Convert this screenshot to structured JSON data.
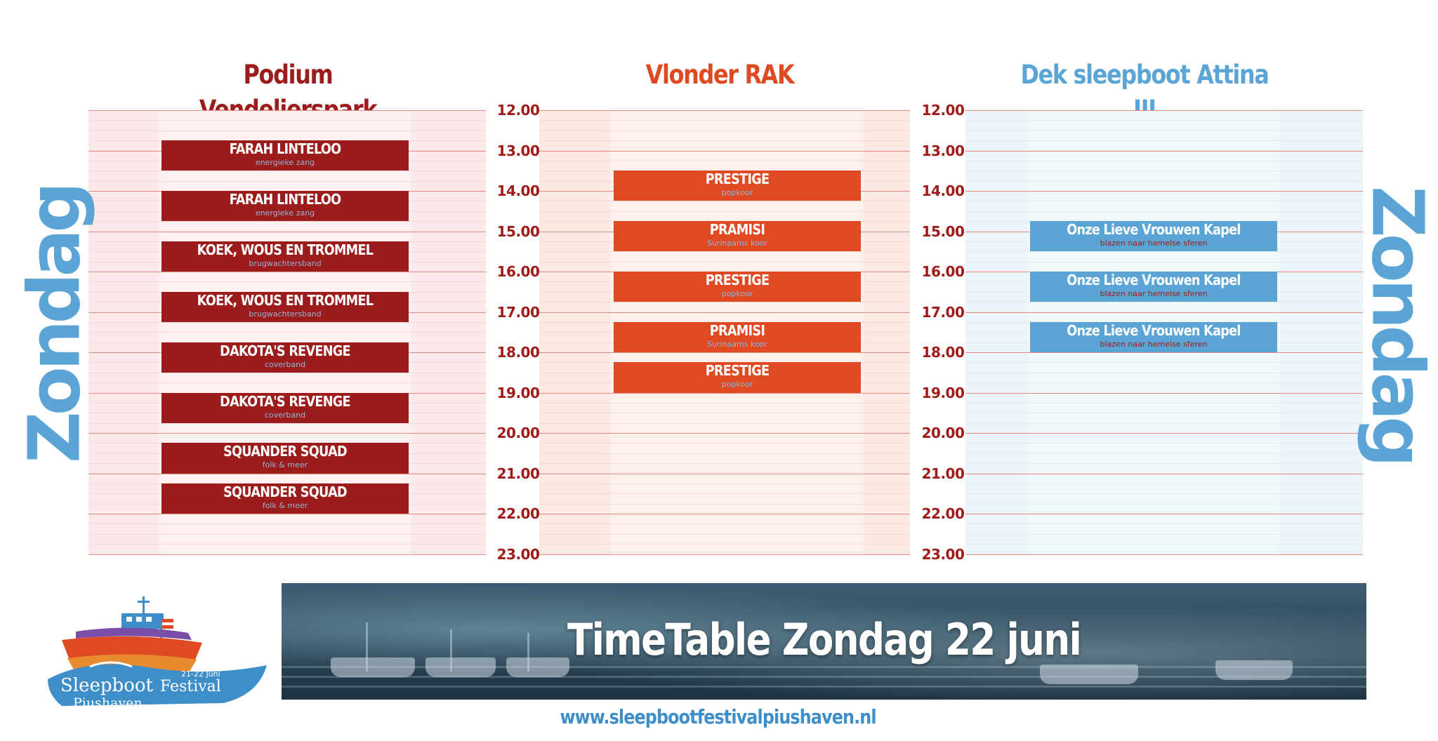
{
  "stages": [
    {
      "id": "podium",
      "title": "Podium Vendelierspark",
      "color": "#9c1b1b"
    },
    {
      "id": "vlonder",
      "title": "Vlonder RAK",
      "color": "#e04a23"
    },
    {
      "id": "dek",
      "title": "Dek sleepboot Attina III",
      "color": "#5aa5d6"
    }
  ],
  "day_label": "Zondag",
  "times": [
    "12.00",
    "13.00",
    "14.00",
    "15.00",
    "16.00",
    "17.00",
    "18.00",
    "19.00",
    "20.00",
    "21.00",
    "22.00",
    "23.00"
  ],
  "schedule": {
    "podium": [
      {
        "name": "FARAH LINTELOO",
        "desc": "energieke zang",
        "start": 12.75,
        "end": 13.5
      },
      {
        "name": "FARAH LINTELOO",
        "desc": "energieke zang",
        "start": 14.0,
        "end": 14.75
      },
      {
        "name": "KOEK, WOUS EN TROMMEL",
        "desc": "brugwachtersband",
        "start": 15.25,
        "end": 16.0
      },
      {
        "name": "KOEK, WOUS EN TROMMEL",
        "desc": "brugwachtersband",
        "start": 16.5,
        "end": 17.25
      },
      {
        "name": "DAKOTA'S REVENGE",
        "desc": "coverband",
        "start": 17.75,
        "end": 18.5
      },
      {
        "name": "DAKOTA'S REVENGE",
        "desc": "coverband",
        "start": 19.0,
        "end": 19.75
      },
      {
        "name": "SQUANDER SQUAD",
        "desc": "folk & meer",
        "start": 20.25,
        "end": 21.0
      },
      {
        "name": "SQUANDER SQUAD",
        "desc": "folk & meer",
        "start": 21.25,
        "end": 22.0
      }
    ],
    "vlonder": [
      {
        "name": "PRESTIGE",
        "desc": "popkoor",
        "start": 13.5,
        "end": 14.25
      },
      {
        "name": "PRAMISI",
        "desc": "Surinaams koor",
        "start": 14.75,
        "end": 15.5
      },
      {
        "name": "PRESTIGE",
        "desc": "popkoor",
        "start": 16.0,
        "end": 16.75
      },
      {
        "name": "PRAMISI",
        "desc": "Surinaams koor",
        "start": 17.25,
        "end": 18.0
      },
      {
        "name": "PRESTIGE",
        "desc": "popkoor",
        "start": 18.25,
        "end": 19.0
      }
    ],
    "dek": [
      {
        "name": "Onze Lieve Vrouwen Kapel",
        "desc": "blazen naar hemelse sferen",
        "start": 14.75,
        "end": 15.5
      },
      {
        "name": "Onze Lieve Vrouwen Kapel",
        "desc": "blazen naar hemelse sferen",
        "start": 16.0,
        "end": 16.75
      },
      {
        "name": "Onze Lieve Vrouwen Kapel",
        "desc": "blazen naar hemelse sferen",
        "start": 17.25,
        "end": 18.0
      }
    ]
  },
  "colors": {
    "podium_panel": "#fbe9e9",
    "vlonder_panel": "#fde9e4",
    "dek_panel": "#eaf4f9",
    "hour_line": "#e88a80",
    "minor_line": "#f3c8c3",
    "time_text": "#a11a1a",
    "podium_desc": "#8fb6d8",
    "vlonder_desc": "#8fb6d8",
    "dek_desc": "#a11a1a"
  },
  "banner": {
    "title": "TimeTable Zondag 22 juni"
  },
  "url": "www.sleepbootfestivalpiushaven.nl",
  "logo": {
    "line1": "Sleepboot",
    "line2": "Festival",
    "line3": "Piushaven",
    "dates": "21-22 Juni"
  }
}
